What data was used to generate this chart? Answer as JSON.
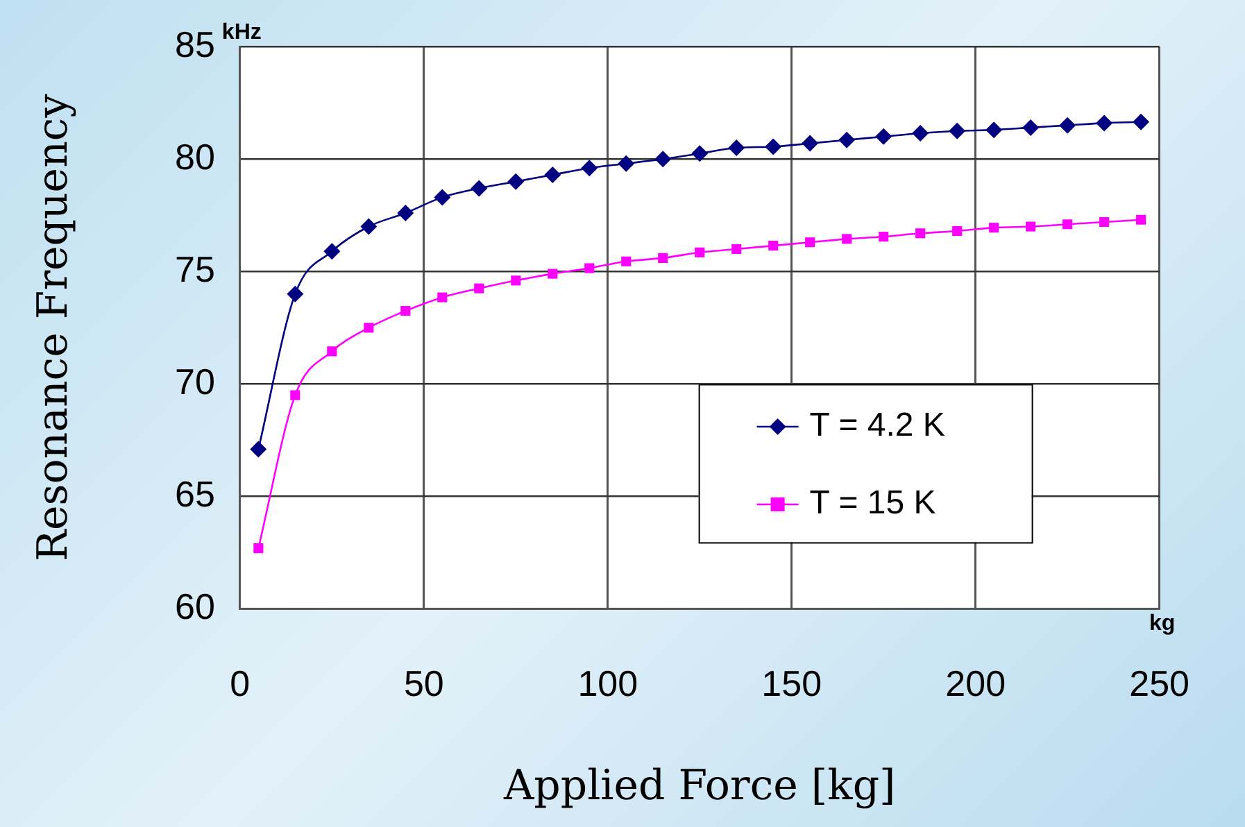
{
  "chart_data": {
    "type": "line",
    "xlabel": "Applied Force [kg]",
    "ylabel": "Resonance Frequency",
    "annotations": [
      "kHz",
      "kg"
    ],
    "x": [
      5,
      15,
      25,
      35,
      45,
      55,
      65,
      75,
      85,
      95,
      105,
      115,
      125,
      135,
      145,
      155,
      165,
      175,
      185,
      195,
      205,
      215,
      225,
      235,
      245
    ],
    "series": [
      {
        "name": "T = 4.2 K",
        "color": "#000080",
        "marker": "diamond",
        "values": [
          67.1,
          74.0,
          75.9,
          77.0,
          77.6,
          78.3,
          78.7,
          79.0,
          79.3,
          79.6,
          79.8,
          80.0,
          80.25,
          80.5,
          80.55,
          80.7,
          80.85,
          81.0,
          81.15,
          81.25,
          81.3,
          81.4,
          81.5,
          81.6,
          81.65
        ]
      },
      {
        "name": "T = 15 K",
        "color": "#ff00ff",
        "marker": "square",
        "values": [
          62.7,
          69.5,
          71.45,
          72.5,
          73.25,
          73.85,
          74.25,
          74.6,
          74.9,
          75.15,
          75.45,
          75.6,
          75.85,
          76.0,
          76.15,
          76.3,
          76.45,
          76.55,
          76.7,
          76.8,
          76.95,
          77.0,
          77.1,
          77.2,
          77.3
        ]
      }
    ],
    "xlim": [
      0,
      250
    ],
    "xticks": [
      0,
      50,
      100,
      150,
      200,
      250
    ],
    "ylim": [
      60,
      85
    ],
    "yticks": [
      60,
      65,
      70,
      75,
      80,
      85
    ],
    "grid": true,
    "legend": "center right",
    "line_style": "solid"
  }
}
